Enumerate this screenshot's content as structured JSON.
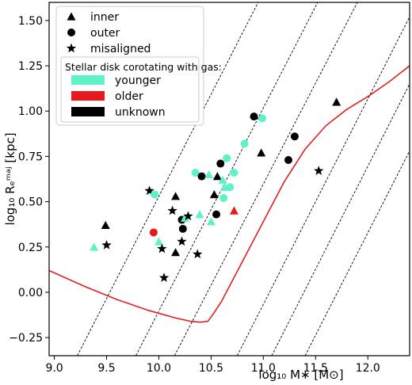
{
  "chart_data": {
    "type": "scatter",
    "xlabel": "log₁₀ M∗ [M⊙]",
    "ylabel": "log₁₀ Rₑᵐᵃʲ [kpc]",
    "xlim": [
      8.95,
      12.4
    ],
    "ylim": [
      -0.35,
      1.6
    ],
    "xticks": [
      9.0,
      9.5,
      10.0,
      10.5,
      11.0,
      11.5,
      12.0
    ],
    "xtick_labels": [
      "9.0",
      "9.5",
      "10.0",
      "10.5",
      "11.0",
      "11.5",
      "12.0"
    ],
    "yticks": [
      -0.25,
      0.0,
      0.25,
      0.5,
      0.75,
      1.0,
      1.25,
      1.5
    ],
    "ytick_labels": [
      "−0.25",
      "0.00",
      "0.25",
      "0.50",
      "0.75",
      "1.00",
      "1.25",
      "1.50"
    ],
    "grid": false,
    "legend": {
      "placement": "top-left",
      "markers": [
        {
          "symbol": "triangle",
          "label": "inner"
        },
        {
          "symbol": "circle",
          "label": "outer"
        },
        {
          "symbol": "star",
          "label": "misaligned"
        }
      ],
      "color_title": "Stellar disk corotating with gas:",
      "colors": [
        {
          "key": "younger",
          "label": "younger",
          "color": "#5ef2c8"
        },
        {
          "key": "older",
          "label": "older",
          "color": "#e8191e"
        },
        {
          "key": "unknown",
          "label": "unknown",
          "color": "#000000"
        }
      ]
    },
    "colors": {
      "younger": "#5ef2c8",
      "older": "#e8191e",
      "unknown": "#000000",
      "curve": "#e02020"
    },
    "points": [
      {
        "x": 9.38,
        "y": 0.25,
        "marker": "triangle",
        "group": "younger"
      },
      {
        "x": 9.49,
        "y": 0.37,
        "marker": "triangle",
        "group": "unknown"
      },
      {
        "x": 9.5,
        "y": 0.26,
        "marker": "star",
        "group": "unknown"
      },
      {
        "x": 9.91,
        "y": 0.56,
        "marker": "star",
        "group": "unknown"
      },
      {
        "x": 9.96,
        "y": 0.54,
        "marker": "circle",
        "group": "younger"
      },
      {
        "x": 9.95,
        "y": 0.33,
        "marker": "circle",
        "group": "older"
      },
      {
        "x": 10.0,
        "y": 0.28,
        "marker": "triangle",
        "group": "younger"
      },
      {
        "x": 10.03,
        "y": 0.24,
        "marker": "star",
        "group": "unknown"
      },
      {
        "x": 10.05,
        "y": 0.08,
        "marker": "star",
        "group": "unknown"
      },
      {
        "x": 10.13,
        "y": 0.45,
        "marker": "star",
        "group": "unknown"
      },
      {
        "x": 10.16,
        "y": 0.53,
        "marker": "triangle",
        "group": "unknown"
      },
      {
        "x": 10.16,
        "y": 0.22,
        "marker": "triangle",
        "group": "unknown"
      },
      {
        "x": 10.22,
        "y": 0.4,
        "marker": "circle",
        "group": "unknown"
      },
      {
        "x": 10.23,
        "y": 0.35,
        "marker": "circle",
        "group": "unknown"
      },
      {
        "x": 10.22,
        "y": 0.28,
        "marker": "star",
        "group": "unknown"
      },
      {
        "x": 10.25,
        "y": 0.41,
        "marker": "triangle",
        "group": "younger"
      },
      {
        "x": 10.28,
        "y": 0.42,
        "marker": "star",
        "group": "unknown"
      },
      {
        "x": 10.35,
        "y": 0.66,
        "marker": "circle",
        "group": "younger"
      },
      {
        "x": 10.37,
        "y": 0.21,
        "marker": "star",
        "group": "unknown"
      },
      {
        "x": 10.39,
        "y": 0.43,
        "marker": "triangle",
        "group": "younger"
      },
      {
        "x": 10.41,
        "y": 0.64,
        "marker": "circle",
        "group": "unknown"
      },
      {
        "x": 10.48,
        "y": 0.65,
        "marker": "triangle",
        "group": "younger"
      },
      {
        "x": 10.5,
        "y": 0.39,
        "marker": "triangle",
        "group": "younger"
      },
      {
        "x": 10.53,
        "y": 0.54,
        "marker": "triangle",
        "group": "unknown"
      },
      {
        "x": 10.55,
        "y": 0.43,
        "marker": "circle",
        "group": "unknown"
      },
      {
        "x": 10.56,
        "y": 0.64,
        "marker": "triangle",
        "group": "unknown"
      },
      {
        "x": 10.59,
        "y": 0.71,
        "marker": "circle",
        "group": "unknown"
      },
      {
        "x": 10.61,
        "y": 0.62,
        "marker": "triangle",
        "group": "younger"
      },
      {
        "x": 10.63,
        "y": 0.58,
        "marker": "triangle",
        "group": "younger"
      },
      {
        "x": 10.62,
        "y": 0.52,
        "marker": "circle",
        "group": "younger"
      },
      {
        "x": 10.65,
        "y": 0.74,
        "marker": "circle",
        "group": "younger"
      },
      {
        "x": 10.68,
        "y": 0.58,
        "marker": "circle",
        "group": "younger"
      },
      {
        "x": 10.72,
        "y": 0.45,
        "marker": "triangle",
        "group": "older"
      },
      {
        "x": 10.72,
        "y": 0.66,
        "marker": "circle",
        "group": "younger"
      },
      {
        "x": 10.82,
        "y": 0.82,
        "marker": "circle",
        "group": "younger"
      },
      {
        "x": 10.91,
        "y": 0.97,
        "marker": "circle",
        "group": "unknown"
      },
      {
        "x": 10.98,
        "y": 0.77,
        "marker": "triangle",
        "group": "unknown"
      },
      {
        "x": 10.99,
        "y": 0.96,
        "marker": "circle",
        "group": "younger"
      },
      {
        "x": 11.24,
        "y": 0.73,
        "marker": "circle",
        "group": "unknown"
      },
      {
        "x": 11.3,
        "y": 0.86,
        "marker": "circle",
        "group": "unknown"
      },
      {
        "x": 11.53,
        "y": 0.67,
        "marker": "star",
        "group": "unknown"
      },
      {
        "x": 11.7,
        "y": 1.05,
        "marker": "triangle",
        "group": "unknown"
      }
    ],
    "diagonal_lines": [
      {
        "x1": 9.22,
        "y1": -0.35,
        "x2": 10.95,
        "y2": 1.6
      },
      {
        "x1": 9.78,
        "y1": -0.35,
        "x2": 11.52,
        "y2": 1.6
      },
      {
        "x1": 10.15,
        "y1": -0.35,
        "x2": 11.9,
        "y2": 1.6
      },
      {
        "x1": 10.75,
        "y1": -0.35,
        "x2": 12.4,
        "y2": 1.52
      },
      {
        "x1": 11.08,
        "y1": -0.35,
        "x2": 12.4,
        "y2": 1.15
      },
      {
        "x1": 11.4,
        "y1": -0.35,
        "x2": 12.4,
        "y2": 0.78
      }
    ],
    "curve": [
      [
        8.95,
        0.12
      ],
      [
        9.3,
        0.03
      ],
      [
        9.6,
        -0.04
      ],
      [
        9.9,
        -0.1
      ],
      [
        10.15,
        -0.14
      ],
      [
        10.3,
        -0.16
      ],
      [
        10.4,
        -0.165
      ],
      [
        10.47,
        -0.16
      ],
      [
        10.52,
        -0.12
      ],
      [
        10.6,
        -0.05
      ],
      [
        10.8,
        0.17
      ],
      [
        11.0,
        0.39
      ],
      [
        11.2,
        0.61
      ],
      [
        11.4,
        0.79
      ],
      [
        11.6,
        0.92
      ],
      [
        11.8,
        1.01
      ],
      [
        12.0,
        1.08
      ],
      [
        12.2,
        1.16
      ],
      [
        12.4,
        1.25
      ]
    ]
  }
}
